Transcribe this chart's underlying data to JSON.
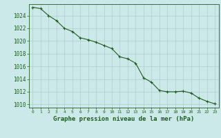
{
  "x": [
    0,
    1,
    2,
    3,
    4,
    5,
    6,
    7,
    8,
    9,
    10,
    11,
    12,
    13,
    14,
    15,
    16,
    17,
    18,
    19,
    20,
    21,
    22,
    23
  ],
  "y": [
    1025.3,
    1025.1,
    1024.0,
    1023.2,
    1022.0,
    1021.5,
    1020.5,
    1020.2,
    1019.8,
    1019.3,
    1018.8,
    1017.5,
    1017.2,
    1016.5,
    1014.2,
    1013.5,
    1012.2,
    1012.0,
    1012.0,
    1012.1,
    1011.8,
    1011.0,
    1010.5,
    1010.1
  ],
  "line_color": "#1a5c1a",
  "marker": "+",
  "marker_size": 3,
  "bg_color": "#cce9e9",
  "grid_color": "#b0cccc",
  "title": "Graphe pression niveau de la mer (hPa)",
  "ytick_labels": [
    1010,
    1012,
    1014,
    1016,
    1018,
    1020,
    1022,
    1024
  ],
  "xtick_labels": [
    0,
    1,
    2,
    3,
    4,
    5,
    6,
    7,
    8,
    9,
    10,
    11,
    12,
    13,
    14,
    15,
    16,
    17,
    18,
    19,
    20,
    21,
    22,
    23
  ],
  "ylim": [
    1009.5,
    1025.8
  ],
  "xlim": [
    -0.5,
    23.5
  ]
}
